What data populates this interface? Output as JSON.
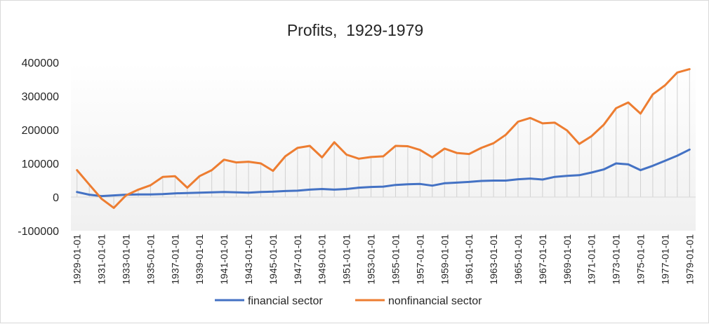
{
  "chart_data": {
    "type": "line",
    "title": "Profits,  1929-1979",
    "xlabel": "",
    "ylabel": "",
    "ylim": [
      -100000,
      400000
    ],
    "yticks": [
      400000,
      300000,
      200000,
      100000,
      0,
      -100000
    ],
    "ytick_labels": [
      "400000",
      "300000",
      "200000",
      "100000",
      "0",
      "-100000"
    ],
    "categories": [
      "1929-01-01",
      "1930-01-01",
      "1931-01-01",
      "1932-01-01",
      "1933-01-01",
      "1934-01-01",
      "1935-01-01",
      "1936-01-01",
      "1937-01-01",
      "1938-01-01",
      "1939-01-01",
      "1940-01-01",
      "1941-01-01",
      "1942-01-01",
      "1943-01-01",
      "1944-01-01",
      "1945-01-01",
      "1946-01-01",
      "1947-01-01",
      "1948-01-01",
      "1949-01-01",
      "1950-01-01",
      "1951-01-01",
      "1952-01-01",
      "1953-01-01",
      "1954-01-01",
      "1955-01-01",
      "1956-01-01",
      "1957-01-01",
      "1958-01-01",
      "1959-01-01",
      "1960-01-01",
      "1961-01-01",
      "1962-01-01",
      "1963-01-01",
      "1964-01-01",
      "1965-01-01",
      "1966-01-01",
      "1967-01-01",
      "1968-01-01",
      "1969-01-01",
      "1970-01-01",
      "1971-01-01",
      "1972-01-01",
      "1973-01-01",
      "1974-01-01",
      "1975-01-01",
      "1976-01-01",
      "1977-01-01",
      "1978-01-01",
      "1979-01-01"
    ],
    "tick_labels": [
      "1929-01-01",
      "1931-01-01",
      "1933-01-01",
      "1935-01-01",
      "1937-01-01",
      "1939-01-01",
      "1941-01-01",
      "1943-01-01",
      "1945-01-01",
      "1947-01-01",
      "1949-01-01",
      "1951-01-01",
      "1953-01-01",
      "1955-01-01",
      "1957-01-01",
      "1959-01-01",
      "1961-01-01",
      "1963-01-01",
      "1965-01-01",
      "1967-01-01",
      "1969-01-01",
      "1971-01-01",
      "1973-01-01",
      "1975-01-01",
      "1977-01-01",
      "1979-01-01"
    ],
    "series": [
      {
        "name": "financial sector",
        "color": "#4472C4",
        "values": [
          15000,
          7000,
          3000,
          5000,
          7000,
          8000,
          8000,
          9000,
          11000,
          12000,
          13000,
          14000,
          15000,
          14000,
          13000,
          15000,
          16000,
          18000,
          19000,
          22000,
          24000,
          22000,
          24000,
          28000,
          30000,
          31000,
          36000,
          38000,
          39000,
          34000,
          41000,
          43000,
          45000,
          48000,
          49000,
          49000,
          53000,
          55000,
          52000,
          60000,
          63000,
          65000,
          73000,
          82000,
          100000,
          97000,
          80000,
          93000,
          108000,
          123000,
          141000
        ]
      },
      {
        "name": "nonfinancial sector",
        "color": "#ED7D31",
        "values": [
          80000,
          37000,
          -5000,
          -32000,
          5000,
          22000,
          35000,
          60000,
          62000,
          28000,
          62000,
          80000,
          111000,
          103000,
          105000,
          100000,
          78000,
          121000,
          146000,
          152000,
          118000,
          163000,
          126000,
          114000,
          119000,
          121000,
          152000,
          151000,
          140000,
          118000,
          144000,
          131000,
          128000,
          146000,
          160000,
          185000,
          224000,
          235000,
          219000,
          221000,
          198000,
          158000,
          181000,
          215000,
          264000,
          281000,
          248000,
          305000,
          332000,
          370000,
          380000
        ]
      }
    ],
    "legend": "bottom"
  }
}
